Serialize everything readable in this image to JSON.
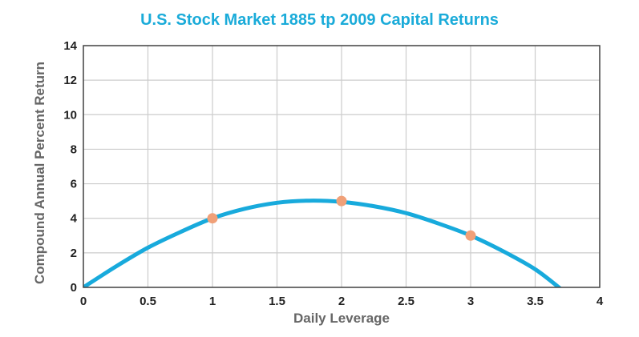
{
  "chart_data": {
    "type": "line",
    "title": "U.S. Stock Market 1885 tp 2009 Capital Returns",
    "xlabel": "Daily Leverage",
    "ylabel": "Compound Annual Percent Return",
    "xlim": [
      0,
      4
    ],
    "ylim": [
      0,
      14
    ],
    "x_ticks": [
      "0",
      "0.5",
      "1",
      "1.5",
      "2",
      "2.5",
      "3",
      "3.5",
      "4"
    ],
    "y_ticks": [
      "0",
      "2",
      "4",
      "6",
      "8",
      "10",
      "12",
      "14"
    ],
    "grid": true,
    "series": [
      {
        "kind": "curve",
        "color": "#18aadc",
        "x": [
          0,
          0.25,
          0.5,
          0.75,
          1,
          1.25,
          1.5,
          1.75,
          2,
          2.25,
          2.5,
          2.75,
          3,
          3.25,
          3.5,
          3.7
        ],
        "y": [
          0,
          1.2,
          2.3,
          3.2,
          4.0,
          4.55,
          4.9,
          5.02,
          4.95,
          4.7,
          4.3,
          3.7,
          3.0,
          2.1,
          1.05,
          -0.1
        ]
      },
      {
        "kind": "points",
        "color": "#f0a078",
        "x": [
          1,
          2,
          3
        ],
        "y": [
          4,
          5,
          3
        ]
      }
    ]
  }
}
